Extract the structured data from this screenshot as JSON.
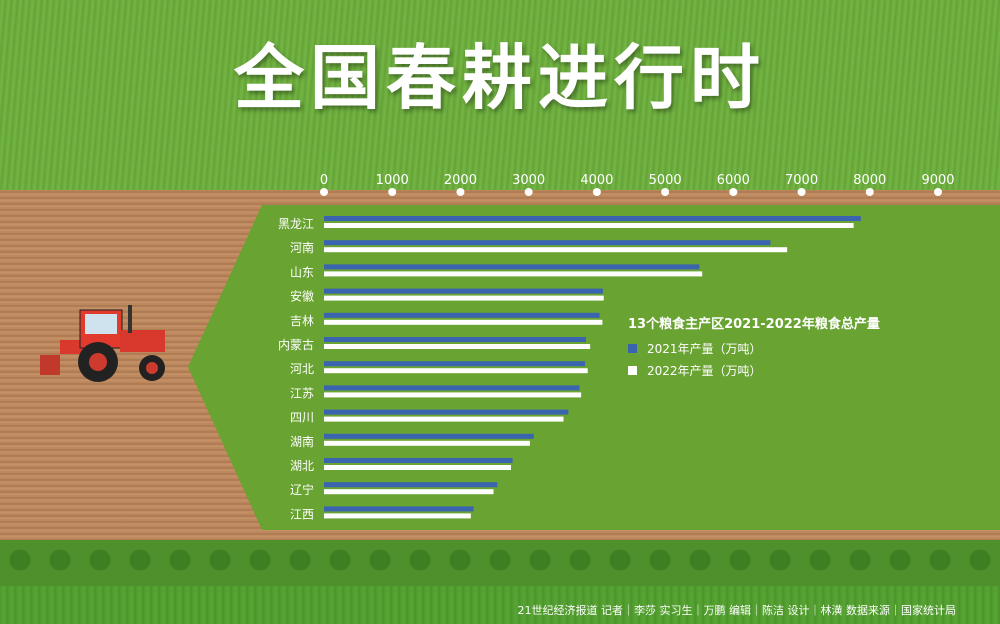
{
  "title": "全国春耕进行时",
  "credits": "21世纪经济报道  记者｜李莎    实习生｜万鹏    编辑｜陈洁    设计｜林潢    数据来源｜国家统计局",
  "colors": {
    "series_2021": "#3a63b0",
    "series_2022": "#ffffff",
    "panel": "#69a332"
  },
  "chart_data": {
    "type": "bar",
    "orientation": "horizontal",
    "title": "13个粮食主产区2021-2022年粮食总产量",
    "xlim": [
      0,
      9000
    ],
    "x_ticks": [
      "0",
      "1000",
      "2000",
      "3000",
      "4000",
      "5000",
      "6000",
      "7000",
      "8000",
      "9000"
    ],
    "categories": [
      "黑龙江",
      "河南",
      "山东",
      "安徽",
      "吉林",
      "内蒙古",
      "河北",
      "江苏",
      "四川",
      "湖南",
      "湖北",
      "辽宁",
      "江西"
    ],
    "series": [
      {
        "name": "2021年产量（万吨）",
        "values": [
          7868,
          6544,
          5501,
          4088,
          4039,
          3840,
          3825,
          3746,
          3582,
          3075,
          2764,
          2539,
          2192
        ]
      },
      {
        "name": "2022年产量（万吨）",
        "values": [
          7763,
          6789,
          5544,
          4100,
          4081,
          3901,
          3865,
          3769,
          3511,
          3018,
          2741,
          2485,
          2152
        ]
      }
    ],
    "grid": false,
    "legend_position": "right"
  }
}
